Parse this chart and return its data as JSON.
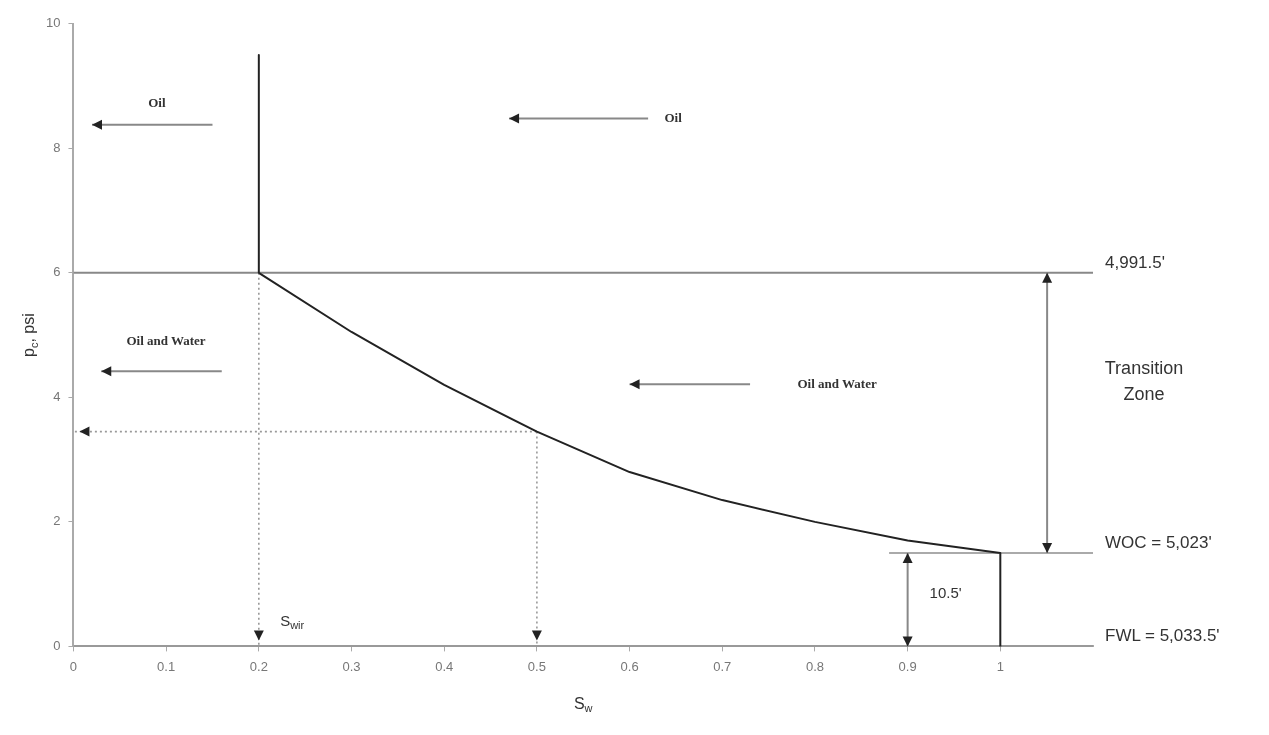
{
  "chart_data": {
    "type": "line",
    "xlabel": "S$_{w}$",
    "ylabel": "p$_{c}$, psi",
    "xlim": [
      0,
      1.1
    ],
    "xticks": [
      0,
      0.1,
      0.2,
      0.3,
      0.4,
      0.5,
      0.6,
      0.7,
      0.8,
      0.9,
      1
    ],
    "ylim": [
      0,
      10
    ],
    "yticks": [
      0,
      2,
      4,
      6,
      8,
      10
    ],
    "grid": false,
    "legend": false,
    "marker": "none",
    "series": [
      {
        "type": "line",
        "color": "#222222",
        "line_style": "solid",
        "x": [
          0.2,
          0.2,
          0.3,
          0.4,
          0.5,
          0.6,
          0.7,
          0.8,
          0.9,
          1,
          1
        ],
        "values": [
          9.5,
          6,
          5.05,
          4.2,
          3.45,
          2.8,
          2.35,
          2,
          1.7,
          1.5,
          0
        ]
      },
      {
        "type": "line",
        "color": "#999999",
        "line_style": "dotted",
        "x": [
          0.2,
          0.2
        ],
        "values": [
          6,
          0
        ]
      },
      {
        "type": "line",
        "color": "#999999",
        "line_style": "dotted",
        "x": [
          0.5,
          0.5
        ],
        "values": [
          3.45,
          0
        ]
      },
      {
        "type": "line",
        "color": "#999999",
        "line_style": "dotted",
        "x": [
          0.5,
          0
        ],
        "values": [
          3.45,
          3.45
        ]
      },
      {
        "type": "line",
        "name": "4,991.5'",
        "color": "#888888",
        "line_style": "solid",
        "x": [
          0,
          1.1
        ],
        "values": [
          6,
          6
        ]
      },
      {
        "type": "line",
        "name": "WOC = 5,023'",
        "color": "#aaaaaa",
        "line_style": "solid",
        "x": [
          0.88,
          1.1
        ],
        "values": [
          1.5,
          1.5
        ]
      },
      {
        "type": "line",
        "name": "FWL = 5,033.5'",
        "color": "#888888",
        "line_style": "solid",
        "x": [
          0,
          1.1
        ],
        "values": [
          0,
          0
        ]
      }
    ],
    "annotations": [
      "Oil",
      "Oil",
      "Oil and Water",
      "Oil and Water",
      "10.5'",
      "S$_{wir}$",
      "Transition Zone"
    ]
  }
}
